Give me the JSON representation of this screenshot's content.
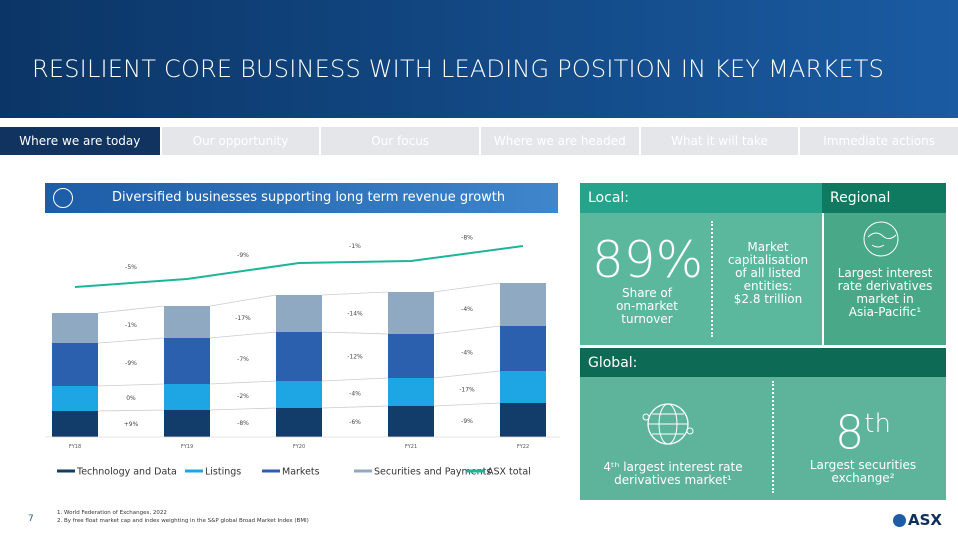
{
  "header": {
    "title": "RESILIENT CORE BUSINESS WITH LEADING POSITION IN KEY MARKETS"
  },
  "tabs": [
    "Where we are today",
    "Our opportunity",
    "Our focus",
    "Where we are headed",
    "What it will take",
    "Immediate actions"
  ],
  "panel_title": "Diversified businesses supporting long term revenue growth",
  "chart_data": {
    "type": "bar",
    "stacked": true,
    "categories": [
      "FY18",
      "FY19",
      "FY20",
      "FY21",
      "FY22"
    ],
    "ylim": [
      0,
      205
    ],
    "series": [
      {
        "name": "Technology and Data",
        "color": "#123d6b",
        "values": [
          26,
          27,
          29,
          31,
          34
        ]
      },
      {
        "name": "Listings",
        "color": "#1ea5e3",
        "values": [
          25,
          26,
          27,
          28,
          32
        ]
      },
      {
        "name": "Markets",
        "color": "#2a60ae",
        "values": [
          43,
          46,
          49,
          44,
          45
        ]
      },
      {
        "name": "Securities and Payments",
        "color": "#8fa9c3",
        "values": [
          30,
          32,
          37,
          42,
          43
        ]
      },
      {
        "name": "ASX total",
        "type": "line",
        "color": "#1cb59b",
        "values": [
          150,
          158,
          174,
          176,
          191
        ]
      }
    ],
    "segment_growth_labels": [
      [
        "+9%",
        "-8%",
        "-6%",
        "-9%"
      ],
      [
        "0%",
        "-2%",
        "-4%",
        "-17%"
      ],
      [
        "-9%",
        "-7%",
        "-12%",
        "-4%"
      ],
      [
        "-1%",
        "-17%",
        "-14%",
        "-4%"
      ]
    ],
    "line_growth_labels": [
      "-5%",
      "-9%",
      "-1%",
      "-8%"
    ]
  },
  "local": {
    "heading": "Local:",
    "big_number": "89%",
    "big_caption": [
      "Share of",
      "on-market",
      "turnover"
    ],
    "stat_caption": [
      "Market",
      "capitalisation",
      "of all listed",
      "entities:",
      "$2.8 trillion"
    ]
  },
  "regional": {
    "heading": "Regional",
    "caption": [
      "Largest interest",
      "rate derivatives",
      "market in",
      "Asia-Pacific¹"
    ]
  },
  "global": {
    "heading": "Global:",
    "left_caption": [
      "4ᵗʰ largest interest rate",
      "derivatives market¹"
    ],
    "rank_number": "8",
    "rank_suffix": "th",
    "right_caption": [
      "Largest securities",
      "exchange²"
    ]
  },
  "page_number": "7",
  "footnotes": [
    "1. World Federation of Exchanges, 2022",
    "2. By free float market cap and index weighting in the S&P global Broad Market Index (BMI)"
  ],
  "logo": "ASX"
}
